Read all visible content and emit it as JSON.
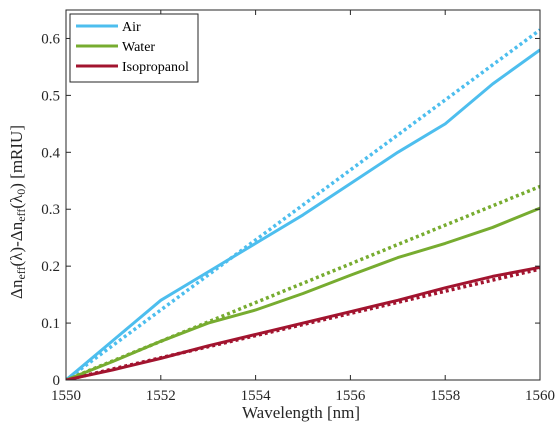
{
  "chart_data": {
    "type": "line",
    "xlabel": "Wavelength [nm]",
    "ylabel_parts": {
      "delta1": "Δn",
      "sub1": "eff",
      "mid": "(λ)-Δn",
      "sub2": "eff",
      "paren_open": "(λ",
      "sub3": "0",
      "tail": ") [mRIU]"
    },
    "xlim": [
      1550,
      1560
    ],
    "ylim": [
      0,
      0.65
    ],
    "x_ticks": [
      1550,
      1552,
      1554,
      1556,
      1558,
      1560
    ],
    "x_tick_labels": [
      "1550",
      "1552",
      "1554",
      "1556",
      "1558",
      "1560"
    ],
    "y_ticks": [
      0,
      0.1,
      0.2,
      0.3,
      0.4,
      0.5,
      0.6
    ],
    "y_tick_labels": [
      "0",
      "0.1",
      "0.2",
      "0.3",
      "0.4",
      "0.5",
      "0.6"
    ],
    "grid": false,
    "legend_position": "top-left",
    "series": [
      {
        "name": "Air",
        "color": "#4DBEEE",
        "style": "solid",
        "x": [
          1550,
          1551,
          1552,
          1553,
          1554,
          1555,
          1556,
          1557,
          1558,
          1559,
          1560
        ],
        "y": [
          0,
          0.07,
          0.14,
          0.19,
          0.24,
          0.29,
          0.345,
          0.4,
          0.45,
          0.52,
          0.58
        ]
      },
      {
        "name": "",
        "color": "#4DBEEE",
        "style": "dotted",
        "x": [
          1550,
          1560
        ],
        "y": [
          0,
          0.615
        ]
      },
      {
        "name": "Water",
        "color": "#77AC30",
        "style": "solid",
        "x": [
          1550,
          1551,
          1552,
          1553,
          1554,
          1555,
          1556,
          1557,
          1558,
          1559,
          1560
        ],
        "y": [
          0,
          0.033,
          0.068,
          0.1,
          0.123,
          0.152,
          0.184,
          0.215,
          0.24,
          0.268,
          0.302
        ]
      },
      {
        "name": "",
        "color": "#77AC30",
        "style": "dotted",
        "x": [
          1550,
          1560
        ],
        "y": [
          0,
          0.34
        ]
      },
      {
        "name": "Isopropanol",
        "color": "#A2142F",
        "style": "solid",
        "x": [
          1550,
          1551,
          1552,
          1553,
          1554,
          1555,
          1556,
          1557,
          1558,
          1559,
          1560
        ],
        "y": [
          0,
          0.018,
          0.038,
          0.06,
          0.08,
          0.1,
          0.12,
          0.14,
          0.162,
          0.182,
          0.198
        ]
      },
      {
        "name": "",
        "color": "#A2142F",
        "style": "dotted",
        "x": [
          1550,
          1560
        ],
        "y": [
          0,
          0.195
        ]
      }
    ]
  }
}
